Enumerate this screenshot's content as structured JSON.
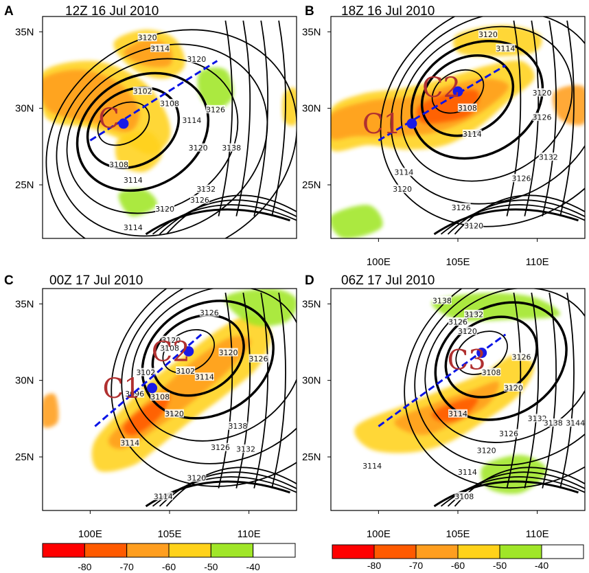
{
  "colors": {
    "cb_bins": [
      "#ff0000",
      "#ff5a00",
      "#ff9e1f",
      "#ffd21a",
      "#a0e628",
      "#ffffff"
    ],
    "track": "#0a14e6",
    "center": "#1a1ae6",
    "cname": "#b03030"
  },
  "colorbar": {
    "labels": [
      "-80",
      "-70",
      "-60",
      "-50",
      "-40"
    ]
  },
  "chart_data": [
    {
      "type": "contour_map",
      "panel": "A",
      "title": "12Z 16 Jul 2010",
      "xlim": [
        97,
        113
      ],
      "ylim": [
        21.5,
        36
      ],
      "xticks": [
        "100E",
        "105E",
        "110E"
      ],
      "yticks": [
        "25N",
        "30N",
        "35N"
      ],
      "centers": [
        {
          "name": "C",
          "lon": 102.1,
          "lat": 29.0
        }
      ],
      "track": [
        [
          100.0,
          27.9
        ],
        [
          108.0,
          33.1
        ]
      ],
      "contour_labels": [
        {
          "t": "3120",
          "lon": 103.6,
          "lat": 34.6
        },
        {
          "t": "3114",
          "lon": 104.4,
          "lat": 33.9
        },
        {
          "t": "3120",
          "lon": 106.7,
          "lat": 33.2
        },
        {
          "t": "3102",
          "lon": 103.3,
          "lat": 31.1
        },
        {
          "t": "3108",
          "lon": 105.0,
          "lat": 30.3
        },
        {
          "t": "3114",
          "lon": 106.4,
          "lat": 29.2
        },
        {
          "t": "3126",
          "lon": 107.9,
          "lat": 29.9
        },
        {
          "t": "3120",
          "lon": 106.8,
          "lat": 27.4
        },
        {
          "t": "3138",
          "lon": 108.9,
          "lat": 27.4
        },
        {
          "t": "3108",
          "lon": 101.8,
          "lat": 26.3
        },
        {
          "t": "3114",
          "lon": 102.7,
          "lat": 25.3
        },
        {
          "t": "3132",
          "lon": 107.3,
          "lat": 24.7
        },
        {
          "t": "3126",
          "lon": 106.9,
          "lat": 24.0
        },
        {
          "t": "3120",
          "lon": 104.7,
          "lat": 23.4
        },
        {
          "t": "3114",
          "lon": 102.7,
          "lat": 22.2
        }
      ]
    },
    {
      "type": "contour_map",
      "panel": "B",
      "title": "18Z 16 Jul 2010",
      "xlim": [
        97,
        113
      ],
      "ylim": [
        21.5,
        36
      ],
      "xticks": [
        "100E",
        "105E",
        "110E"
      ],
      "yticks": [
        "25N",
        "30N",
        "35N"
      ],
      "centers": [
        {
          "name": "C1",
          "lon": 102.1,
          "lat": 29.0
        },
        {
          "name": "C2",
          "lon": 105.0,
          "lat": 31.1
        }
      ],
      "track": [
        [
          100.0,
          27.9
        ],
        [
          108.0,
          32.8
        ]
      ],
      "contour_labels": [
        {
          "t": "3120",
          "lon": 106.9,
          "lat": 34.8
        },
        {
          "t": "3114",
          "lon": 108.0,
          "lat": 33.9
        },
        {
          "t": "3120",
          "lon": 110.3,
          "lat": 31.0
        },
        {
          "t": "3108",
          "lon": 105.6,
          "lat": 30.0
        },
        {
          "t": "3126",
          "lon": 110.3,
          "lat": 29.4
        },
        {
          "t": "3114",
          "lon": 105.9,
          "lat": 28.3
        },
        {
          "t": "3132",
          "lon": 110.7,
          "lat": 26.8
        },
        {
          "t": "3114",
          "lon": 101.6,
          "lat": 25.8
        },
        {
          "t": "3126",
          "lon": 109.0,
          "lat": 25.4
        },
        {
          "t": "3120",
          "lon": 101.5,
          "lat": 24.7
        },
        {
          "t": "3126",
          "lon": 105.2,
          "lat": 23.5
        },
        {
          "t": "3120",
          "lon": 106.0,
          "lat": 22.3
        }
      ]
    },
    {
      "type": "contour_map",
      "panel": "C",
      "title": "00Z 17 Jul 2010",
      "xlim": [
        97,
        113
      ],
      "ylim": [
        21.5,
        36
      ],
      "xticks": [
        "100E",
        "105E",
        "110E"
      ],
      "yticks": [
        "25N",
        "30N",
        "35N"
      ],
      "centers": [
        {
          "name": "C1",
          "lon": 103.9,
          "lat": 29.5
        },
        {
          "name": "C2",
          "lon": 106.2,
          "lat": 31.9
        }
      ],
      "track": [
        [
          100.3,
          27.0
        ],
        [
          107.0,
          33.0
        ]
      ],
      "contour_labels": [
        {
          "t": "3126",
          "lon": 107.5,
          "lat": 34.4
        },
        {
          "t": "3120",
          "lon": 105.1,
          "lat": 32.6
        },
        {
          "t": "3108",
          "lon": 105.0,
          "lat": 32.1
        },
        {
          "t": "3120",
          "lon": 108.7,
          "lat": 31.8
        },
        {
          "t": "3126",
          "lon": 110.6,
          "lat": 31.4
        },
        {
          "t": "3102",
          "lon": 103.5,
          "lat": 30.5
        },
        {
          "t": "3102",
          "lon": 106.0,
          "lat": 30.6
        },
        {
          "t": "3114",
          "lon": 107.2,
          "lat": 30.2
        },
        {
          "t": "3096",
          "lon": 102.8,
          "lat": 29.1
        },
        {
          "t": "3108",
          "lon": 104.4,
          "lat": 28.9
        },
        {
          "t": "3120",
          "lon": 105.3,
          "lat": 27.8
        },
        {
          "t": "3114",
          "lon": 102.5,
          "lat": 25.9
        },
        {
          "t": "3138",
          "lon": 109.3,
          "lat": 27.0
        },
        {
          "t": "3126",
          "lon": 108.2,
          "lat": 25.6
        },
        {
          "t": "3132",
          "lon": 109.8,
          "lat": 25.5
        },
        {
          "t": "3120",
          "lon": 106.7,
          "lat": 23.6
        },
        {
          "t": "3114",
          "lon": 104.6,
          "lat": 22.4
        }
      ]
    },
    {
      "type": "contour_map",
      "panel": "D",
      "title": "06Z 17 Jul 2010",
      "xlim": [
        97,
        113
      ],
      "ylim": [
        21.5,
        36
      ],
      "xticks": [
        "100E",
        "105E",
        "110E"
      ],
      "yticks": [
        "25N",
        "30N",
        "35N"
      ],
      "centers": [
        {
          "name": "C3",
          "lon": 106.5,
          "lat": 31.8
        }
      ],
      "track": [
        [
          100.0,
          27.0
        ],
        [
          108.0,
          33.0
        ]
      ],
      "contour_labels": [
        {
          "t": "3138",
          "lon": 104.0,
          "lat": 35.2
        },
        {
          "t": "3132",
          "lon": 106.0,
          "lat": 34.3
        },
        {
          "t": "3126",
          "lon": 105.0,
          "lat": 33.8
        },
        {
          "t": "3120",
          "lon": 105.6,
          "lat": 33.2
        },
        {
          "t": "3126",
          "lon": 109.0,
          "lat": 31.5
        },
        {
          "t": "3108",
          "lon": 107.1,
          "lat": 30.5
        },
        {
          "t": "3120",
          "lon": 108.5,
          "lat": 29.5
        },
        {
          "t": "3114",
          "lon": 105.0,
          "lat": 27.8
        },
        {
          "t": "3132",
          "lon": 110.0,
          "lat": 27.5
        },
        {
          "t": "3138",
          "lon": 111.0,
          "lat": 27.2
        },
        {
          "t": "3144",
          "lon": 112.4,
          "lat": 27.2
        },
        {
          "t": "3126",
          "lon": 108.2,
          "lat": 26.5
        },
        {
          "t": "3120",
          "lon": 106.8,
          "lat": 25.4
        },
        {
          "t": "3114",
          "lon": 99.6,
          "lat": 24.4
        },
        {
          "t": "3114",
          "lon": 105.6,
          "lat": 24.0
        },
        {
          "t": "3108",
          "lon": 105.4,
          "lat": 22.4
        }
      ]
    }
  ]
}
